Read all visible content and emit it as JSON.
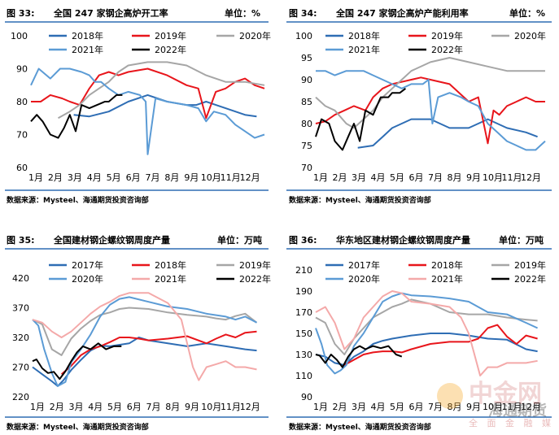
{
  "palette": {
    "blue": "#2e6db4",
    "red": "#e8151b",
    "gray": "#a6a6a6",
    "light_blue": "#5b9bd5",
    "pink": "#f4a9a9",
    "black": "#000000"
  },
  "chart_data": [
    {
      "type": "line",
      "label": "图 33:",
      "title": "全国 247 家钢企高炉开工率",
      "unit": "单位：%",
      "source": "数据来源：Mysteel、海通期货投资咨询部",
      "ylim": [
        60,
        100
      ],
      "yticks": [
        "100",
        "90",
        "80",
        "70",
        "60"
      ],
      "months": [
        "1月",
        "2月",
        "3月",
        "4月",
        "5月",
        "6月",
        "7月",
        "8月",
        "9月",
        "10月",
        "11月",
        "12月"
      ],
      "series": [
        {
          "name": "2018年",
          "color": "blue",
          "x": [
            3.2,
            4,
            5,
            6,
            7,
            8,
            9,
            9.5,
            10,
            11,
            12,
            12.6
          ],
          "y": [
            76,
            75.5,
            77,
            80,
            82,
            80,
            79,
            79,
            80,
            78,
            76,
            75.5
          ]
        },
        {
          "name": "2019年",
          "color": "red",
          "x": [
            1,
            1.5,
            2,
            2.6,
            3,
            3.5,
            4,
            4.5,
            5,
            5.5,
            6,
            7,
            8,
            9,
            9.6,
            10,
            10.5,
            11,
            11.5,
            12,
            12.5,
            13
          ],
          "y": [
            80,
            80,
            82,
            81,
            80,
            79,
            84,
            88,
            89,
            88,
            89,
            90,
            88,
            85,
            84,
            75,
            83,
            84,
            86,
            87,
            85,
            84
          ]
        },
        {
          "name": "2020年",
          "color": "gray",
          "x": [
            2.4,
            3,
            3.5,
            4,
            4.5,
            5,
            5.5,
            6,
            7,
            8,
            9,
            10,
            11,
            12,
            13
          ],
          "y": [
            75,
            77,
            79,
            82,
            84,
            86,
            89,
            91,
            92,
            92,
            91,
            88,
            86,
            86,
            85
          ]
        },
        {
          "name": "2021年",
          "color": "light_blue",
          "x": [
            1,
            1.4,
            2,
            2.5,
            3,
            3.6,
            4,
            4.3,
            4.6,
            5,
            5.5,
            6,
            6.6,
            6.9,
            7,
            7.4,
            8,
            9,
            9.6,
            10,
            10.4,
            11,
            11.5,
            12,
            12.5,
            13
          ],
          "y": [
            85,
            90,
            87,
            90,
            90,
            89,
            88,
            86,
            86,
            84,
            82,
            83,
            82,
            80,
            64,
            81,
            80,
            79,
            78,
            74,
            77,
            76,
            73,
            71,
            69,
            70
          ]
        },
        {
          "name": "2022年",
          "color": "black",
          "x": [
            1,
            1.3,
            1.6,
            2,
            2.4,
            2.7,
            3,
            3.3,
            3.6,
            4,
            4.4,
            4.8,
            5,
            5.4,
            5.7
          ],
          "y": [
            74,
            76,
            74,
            70,
            69,
            72,
            76,
            71,
            79,
            78,
            79,
            80,
            80,
            82,
            82
          ]
        }
      ]
    },
    {
      "type": "line",
      "label": "图 34:",
      "title": "全国 247 家钢企高炉产能利用率",
      "unit": "单位：%",
      "source": "数据来源：Mysteel、海通期货投资咨询部",
      "ylim": [
        70,
        100
      ],
      "yticks": [
        "100",
        "95",
        "90",
        "85",
        "80",
        "75",
        "70"
      ],
      "months": [
        "1月",
        "2月",
        "3月",
        "4月",
        "5月",
        "6月",
        "7月",
        "8月",
        "9月",
        "10月",
        "11月",
        "12月"
      ],
      "series": [
        {
          "name": "2018年",
          "color": "blue",
          "x": [
            3.2,
            4,
            4.5,
            5,
            6,
            7,
            8,
            9,
            9.5,
            10,
            11,
            12,
            12.6
          ],
          "y": [
            74.5,
            75,
            77,
            79,
            81,
            81,
            79,
            79,
            80,
            81,
            79,
            78,
            77
          ]
        },
        {
          "name": "2019年",
          "color": "red",
          "x": [
            1,
            1.5,
            2,
            2.5,
            3,
            3.6,
            4,
            4.5,
            5,
            5.5,
            6,
            6.5,
            7,
            8,
            9,
            9.5,
            10,
            10.3,
            10.6,
            11,
            11.5,
            12,
            12.5,
            13
          ],
          "y": [
            80,
            80.5,
            82,
            83,
            84,
            83,
            86,
            88,
            89,
            89.5,
            90,
            90.5,
            90,
            89,
            85,
            86,
            75.5,
            83,
            82,
            84,
            85,
            86,
            85,
            85
          ]
        },
        {
          "name": "2020年",
          "color": "gray",
          "x": [
            1,
            1.5,
            2,
            2.6,
            3,
            3.5,
            4,
            4.5,
            5,
            5.5,
            6,
            7,
            8,
            9,
            10,
            11,
            12,
            13
          ],
          "y": [
            86,
            84,
            83,
            80,
            79,
            81,
            83,
            86,
            88,
            90,
            92,
            94,
            95,
            94,
            93,
            92,
            92,
            92
          ]
        },
        {
          "name": "2021年",
          "color": "light_blue",
          "x": [
            1,
            1.5,
            2,
            2.6,
            3,
            3.5,
            4,
            4.5,
            5,
            5.5,
            6,
            6.6,
            6.9,
            7.1,
            7.4,
            8,
            8.6,
            9,
            9.5,
            10,
            10.5,
            11,
            11.5,
            12,
            12.5,
            13
          ],
          "y": [
            92,
            92,
            91,
            92,
            92,
            92,
            91,
            90,
            89,
            88,
            89,
            89,
            90,
            80,
            86,
            87,
            86,
            85,
            84,
            80,
            78,
            76,
            75,
            74,
            74,
            76
          ]
        },
        {
          "name": "2022年",
          "color": "black",
          "x": [
            1,
            1.3,
            1.7,
            2,
            2.4,
            2.7,
            3,
            3.3,
            3.6,
            4,
            4.4,
            4.8,
            5,
            5.4,
            5.7
          ],
          "y": [
            77,
            81,
            80,
            76,
            74,
            77,
            80,
            76,
            83,
            82,
            86,
            86,
            87,
            87,
            88
          ]
        }
      ]
    },
    {
      "type": "line",
      "label": "图 35:",
      "title": "全国建材钢企螺纹钢周度产量",
      "unit": "单位：万吨",
      "source": "数据来源：Mysteel、海通期货投资咨询部",
      "ylim": [
        220,
        420
      ],
      "yticks": [
        "420",
        "370",
        "320",
        "270",
        "220"
      ],
      "months": [
        "1月",
        "2月",
        "3月",
        "4月",
        "5月",
        "6月",
        "7月",
        "8月",
        "9月",
        "10月",
        "11月",
        "12月"
      ],
      "series": [
        {
          "name": "2017年",
          "color": "blue",
          "x": [
            1,
            1.5,
            2,
            2.3,
            2.6,
            3,
            3.5,
            4,
            4.5,
            5,
            6,
            6.5,
            7,
            8,
            9,
            10,
            11,
            12,
            12.6
          ],
          "y": [
            270,
            258,
            246,
            238,
            248,
            265,
            282,
            298,
            306,
            305,
            310,
            320,
            315,
            310,
            305,
            310,
            305,
            300,
            298
          ]
        },
        {
          "name": "2018年",
          "color": "red",
          "x": [
            2.5,
            3,
            3.5,
            4,
            4.5,
            5,
            5.5,
            6,
            6.5,
            7,
            8,
            9,
            10,
            10.5,
            11,
            11.5,
            12,
            12.6
          ],
          "y": [
            258,
            272,
            290,
            300,
            305,
            312,
            320,
            320,
            318,
            315,
            318,
            322,
            310,
            318,
            325,
            320,
            328,
            330
          ]
        },
        {
          "name": "2019年",
          "color": "gray",
          "x": [
            1,
            1.5,
            2,
            2.5,
            3,
            3.5,
            4,
            4.5,
            5,
            5.5,
            6,
            7,
            8,
            9,
            10,
            10.5,
            11,
            11.5,
            12,
            12.6
          ],
          "y": [
            350,
            342,
            300,
            290,
            318,
            335,
            348,
            358,
            362,
            368,
            370,
            368,
            362,
            358,
            355,
            352,
            350,
            356,
            360,
            345
          ]
        },
        {
          "name": "2020年",
          "color": "light_blue",
          "x": [
            1,
            1.3,
            1.6,
            2,
            2.3,
            2.7,
            3,
            3.5,
            4,
            4.5,
            5,
            5.5,
            6,
            7,
            8,
            9,
            10,
            11,
            11.5,
            12,
            12.6
          ],
          "y": [
            350,
            340,
            300,
            260,
            238,
            245,
            278,
            300,
            325,
            355,
            375,
            385,
            388,
            380,
            372,
            368,
            360,
            355,
            350,
            355,
            345
          ]
        },
        {
          "name": "2021年",
          "color": "pink",
          "x": [
            1,
            1.5,
            2,
            2.5,
            3,
            3.5,
            4,
            4.5,
            5,
            5.5,
            6,
            7,
            8,
            8.7,
            9,
            9.3,
            9.6,
            10,
            10.5,
            11,
            11.5,
            12,
            12.6
          ],
          "y": [
            350,
            345,
            330,
            320,
            330,
            345,
            360,
            372,
            380,
            390,
            395,
            395,
            378,
            350,
            310,
            270,
            248,
            270,
            275,
            280,
            270,
            270,
            266
          ]
        },
        {
          "name": "2022年",
          "color": "black",
          "x": [
            1,
            1.2,
            1.5,
            1.8,
            2.1,
            2.4,
            2.7,
            3,
            3.3,
            3.6,
            4,
            4.4,
            4.8,
            5.2,
            5.6
          ],
          "y": [
            280,
            283,
            268,
            260,
            262,
            250,
            263,
            280,
            295,
            305,
            300,
            310,
            300,
            305,
            305
          ]
        }
      ]
    },
    {
      "type": "line",
      "label": "图 36:",
      "title": "华东地区建材钢企螺纹钢周度产量",
      "unit": "单位：万吨",
      "source": "数据来源：Mysteel、海通期货投资咨询部",
      "ylim": [
        90,
        210
      ],
      "yticks": [
        "210",
        "190",
        "170",
        "150",
        "130",
        "110",
        "90"
      ],
      "months": [
        "1月",
        "2月",
        "3月",
        "4月",
        "5月",
        "6月",
        "7月",
        "8月",
        "9月",
        "10月",
        "11月",
        "12月"
      ],
      "series": [
        {
          "name": "2017年",
          "color": "blue",
          "x": [
            1,
            1.5,
            2,
            2.5,
            3,
            3.5,
            4,
            4.5,
            5,
            6,
            7,
            8,
            9,
            10,
            11,
            12,
            12.6
          ],
          "y": [
            130,
            128,
            122,
            120,
            128,
            133,
            140,
            143,
            145,
            148,
            150,
            150,
            148,
            145,
            144,
            135,
            133
          ]
        },
        {
          "name": "2018年",
          "color": "red",
          "x": [
            2.5,
            3,
            3.5,
            4,
            4.5,
            5,
            5.5,
            6,
            7,
            8,
            9,
            9.5,
            10,
            10.5,
            11,
            11.5,
            12,
            12.6
          ],
          "y": [
            120,
            125,
            130,
            132,
            133,
            133,
            132,
            135,
            140,
            142,
            142,
            145,
            155,
            158,
            147,
            140,
            148,
            145
          ]
        },
        {
          "name": "2019年",
          "color": "gray",
          "x": [
            1,
            1.5,
            2,
            2.5,
            3,
            3.5,
            4,
            4.5,
            5,
            5.5,
            6,
            7,
            8,
            9,
            10,
            11,
            12,
            12.6
          ],
          "y": [
            165,
            160,
            140,
            130,
            145,
            155,
            165,
            170,
            175,
            178,
            182,
            178,
            170,
            168,
            168,
            165,
            163,
            162
          ]
        },
        {
          "name": "2020年",
          "color": "light_blue",
          "x": [
            1,
            1.3,
            1.6,
            2,
            2.3,
            2.6,
            3,
            3.5,
            4,
            4.5,
            5,
            5.5,
            6,
            7,
            8,
            9,
            10,
            11,
            12,
            12.6
          ],
          "y": [
            155,
            140,
            120,
            112,
            115,
            120,
            138,
            150,
            165,
            180,
            185,
            188,
            186,
            185,
            183,
            180,
            170,
            168,
            160,
            155
          ]
        },
        {
          "name": "2021年",
          "color": "pink",
          "x": [
            1,
            1.5,
            2,
            2.5,
            3,
            3.5,
            4,
            4.5,
            5,
            5.5,
            6,
            7,
            8,
            8.6,
            9,
            9.3,
            9.6,
            10,
            10.5,
            11,
            12,
            12.6
          ],
          "y": [
            170,
            175,
            160,
            135,
            145,
            165,
            175,
            185,
            190,
            188,
            180,
            178,
            175,
            165,
            150,
            130,
            110,
            118,
            118,
            122,
            122,
            124
          ]
        },
        {
          "name": "2022年",
          "color": "black",
          "x": [
            1,
            1.2,
            1.5,
            1.8,
            2.1,
            2.4,
            2.7,
            3,
            3.3,
            3.6,
            4,
            4.4,
            4.8,
            5.2,
            5.5
          ],
          "y": [
            130,
            129,
            122,
            130,
            125,
            118,
            128,
            135,
            138,
            135,
            138,
            136,
            138,
            130,
            128
          ]
        }
      ]
    }
  ],
  "watermark": {
    "brand": "中金网",
    "company": "海通期货",
    "slogan": "全 面 金 融 媒 体"
  }
}
